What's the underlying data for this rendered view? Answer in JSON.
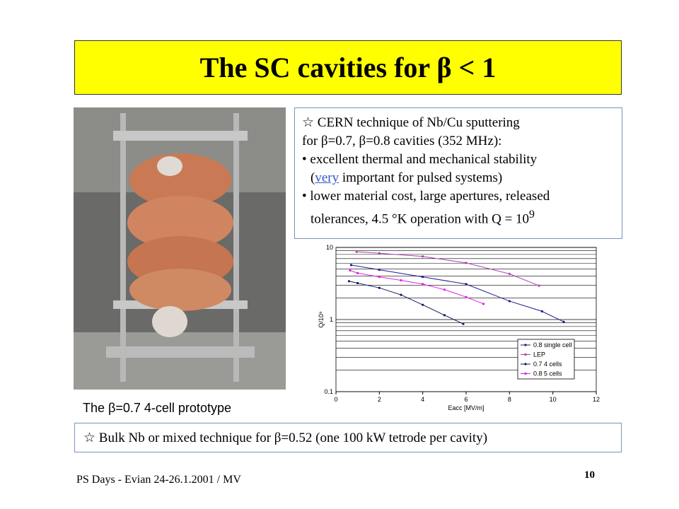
{
  "title": "The SC cavities for β < 1",
  "info_box": {
    "lines": [
      "☆ CERN technique of Nb/Cu sputtering",
      "for β=0.7, β=0.8 cavities (352 MHz):",
      "• excellent thermal and mechanical stability",
      [
        "(",
        "very",
        " important for pulsed systems)"
      ],
      "• lower material cost, large apertures, released",
      [
        "tolerances, 4.5 °K operation with Q = 10",
        "9"
      ]
    ]
  },
  "caption": "The β=0.7 4-cell prototype",
  "bottom_box": "☆ Bulk Nb or mixed technique for β=0.52 (one 100 kW tetrode per cavity)",
  "footer": {
    "left": "PS Days - Evian 24-26.1.2001 / MV",
    "page": "10"
  },
  "chart_data": {
    "type": "line",
    "xlabel": "Eacc [MV/m]",
    "ylabel": "Q/10⁹",
    "xlim": [
      0,
      12
    ],
    "xticks": [
      0,
      2,
      4,
      6,
      8,
      10,
      12
    ],
    "ylim": [
      0.1,
      10
    ],
    "yticks": [
      0.1,
      1,
      10
    ],
    "log_y": true,
    "minor_yticks": [
      0.2,
      0.3,
      0.4,
      0.5,
      0.6,
      0.7,
      0.8,
      0.9,
      2,
      3,
      4,
      5,
      6,
      7,
      8,
      9
    ],
    "grid": true,
    "legend": "lower right",
    "series": [
      {
        "name": "0.8 single cell",
        "color": "#1c1c8c",
        "x": [
          0.7,
          2,
          4,
          6,
          8,
          9.5,
          10.5
        ],
        "values": [
          5.7,
          4.9,
          3.9,
          3.1,
          1.8,
          1.3,
          0.93
        ]
      },
      {
        "name": "LEP",
        "color": "#b03fae",
        "x": [
          0.95,
          2,
          4,
          6,
          8,
          9.36
        ],
        "values": [
          8.7,
          8.3,
          7.5,
          6.1,
          4.3,
          2.95
        ]
      },
      {
        "name": "0.7 4 cells",
        "color": "#0d1a5c",
        "x": [
          0.6,
          1,
          2,
          3,
          4,
          5,
          5.87
        ],
        "values": [
          3.4,
          3.2,
          2.75,
          2.2,
          1.6,
          1.15,
          0.87
        ]
      },
      {
        "name": "0.8 5 cells",
        "color": "#e020e0",
        "x": [
          0.65,
          1,
          2,
          3,
          4,
          5,
          6,
          6.8
        ],
        "values": [
          4.8,
          4.4,
          3.9,
          3.5,
          3.1,
          2.6,
          2.05,
          1.65
        ]
      }
    ]
  }
}
